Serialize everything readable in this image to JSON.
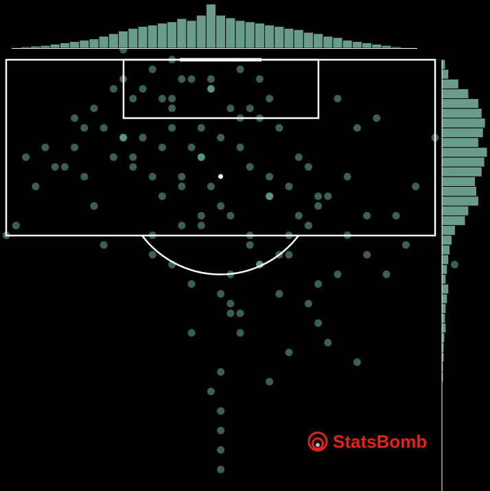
{
  "logo_text": "StatsBomb",
  "chart_data": [
    {
      "type": "scatter",
      "color": "#84d1bf",
      "xlim": [
        17.35,
        67.63
      ],
      "ylim": [
        75.8,
        126.1
      ],
      "x": [
        40,
        35,
        45,
        30,
        50,
        38,
        42,
        28,
        52,
        33,
        47,
        36,
        44,
        25,
        55,
        39,
        41,
        31,
        49,
        34,
        46,
        37,
        43,
        27,
        53,
        40,
        32,
        48,
        29,
        51,
        38,
        42,
        35,
        45,
        24,
        56,
        41,
        39,
        33,
        47,
        44,
        36,
        30,
        50,
        26,
        54,
        40,
        43,
        37,
        31,
        49,
        34,
        46,
        22,
        58,
        41,
        39,
        45,
        35,
        28,
        52,
        38,
        42,
        33,
        47,
        20,
        60,
        40,
        36,
        44,
        30,
        50,
        27,
        53,
        41,
        39,
        34,
        46,
        25,
        55,
        43,
        37,
        32,
        48,
        21,
        59,
        40,
        38,
        42,
        35,
        45,
        29,
        51,
        62,
        19,
        40,
        44,
        36,
        31,
        49,
        26,
        54,
        41,
        39,
        33,
        47,
        23,
        57,
        40,
        37,
        43,
        35,
        45,
        30,
        50,
        64,
        18,
        42,
        38,
        40
      ],
      "y": [
        112,
        115,
        108,
        118,
        105,
        110,
        119,
        113,
        116,
        102,
        100,
        107,
        114,
        111,
        104,
        117,
        98,
        109,
        103,
        106,
        113,
        118,
        101,
        115,
        108,
        96,
        112,
        110,
        117,
        106,
        104,
        111,
        99,
        116,
        109,
        114,
        94,
        107,
        119,
        102,
        118,
        103,
        112,
        97,
        108,
        113,
        105,
        115,
        92,
        110,
        109,
        116,
        100,
        111,
        104,
        95,
        117,
        106,
        113,
        101,
        98,
        103,
        114,
        108,
        90,
        110,
        107,
        88,
        118,
        99,
        112,
        93,
        105,
        102,
        115,
        86,
        111,
        96,
        114,
        100,
        109,
        97,
        117,
        104,
        107,
        101,
        84,
        113,
        94,
        120,
        106,
        110,
        91,
        112,
        103,
        82,
        99,
        108,
        116,
        95,
        113,
        89,
        104,
        118,
        100,
        107,
        109,
        98,
        80,
        111,
        102,
        116,
        87,
        121,
        106,
        99,
        102,
        92,
        110,
        78
      ]
    },
    {
      "type": "histogram",
      "color": "#6a9c8e",
      "ylim": [
        0,
        70
      ],
      "bins": [
        17.5,
        18.5,
        19.5,
        20.5,
        21.5,
        22.5,
        23.5,
        24.5,
        25.5,
        26.5,
        27.5,
        28.5,
        29.5,
        30.5,
        31.5,
        32.5,
        33.5,
        34.5,
        35.5,
        36.5,
        37.5,
        38.5,
        39.5,
        40.5,
        41.5,
        42.5,
        43.5,
        44.5,
        45.5,
        46.5,
        47.5,
        48.5,
        49.5,
        50.5,
        51.5,
        52.5,
        53.5,
        54.5,
        55.5,
        56.5,
        57.5,
        58.5,
        59.5
      ],
      "values": [
        1,
        1,
        2,
        3,
        4,
        6,
        8,
        10,
        12,
        14,
        18,
        22,
        26,
        30,
        33,
        35,
        38,
        40,
        45,
        42,
        50,
        67,
        50,
        46,
        42,
        40,
        38,
        35,
        33,
        30,
        28,
        24,
        22,
        18,
        16,
        12,
        10,
        8,
        6,
        4,
        2,
        1
      ]
    },
    {
      "type": "histogram-horizontal",
      "color": "#6a9c8e",
      "xlim": [
        0,
        70
      ],
      "bins": [
        76,
        77,
        78,
        79,
        80,
        81,
        82,
        83,
        84,
        85,
        86,
        87,
        88,
        89,
        90,
        91,
        92,
        93,
        94,
        95,
        96,
        97,
        98,
        99,
        100,
        101,
        102,
        103,
        104,
        105,
        106,
        107,
        108,
        109,
        110,
        111,
        112,
        113,
        114,
        115,
        116,
        117,
        118,
        119,
        120
      ],
      "values": [
        1,
        1,
        1,
        1,
        1,
        1,
        1,
        1,
        1,
        1,
        1,
        2,
        2,
        3,
        3,
        4,
        6,
        5,
        6,
        8,
        10,
        6,
        8,
        10,
        12,
        15,
        20,
        35,
        40,
        55,
        52,
        50,
        60,
        64,
        68,
        55,
        62,
        65,
        60,
        55,
        40,
        25,
        10,
        5
      ]
    }
  ]
}
